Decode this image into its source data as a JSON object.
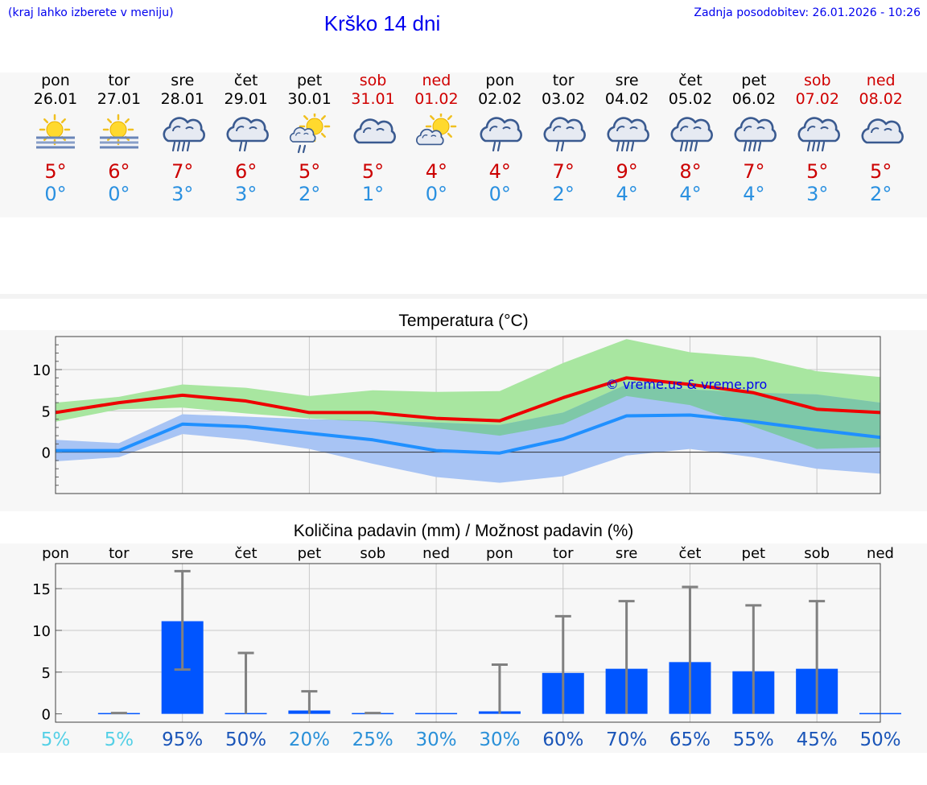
{
  "header": {
    "hint": "(kraj lahko izberete v meniju)",
    "title": "Krško 14 dni",
    "updated": "Zadnja posodobitev: 26.01.2026 - 10:26"
  },
  "forecast": [
    {
      "day": "pon",
      "date": "26.01",
      "weekend": false,
      "icon": "sun-fog-icon",
      "tmax": "5°",
      "tmin": "0°"
    },
    {
      "day": "tor",
      "date": "27.01",
      "weekend": false,
      "icon": "sun-fog-icon",
      "tmax": "6°",
      "tmin": "0°"
    },
    {
      "day": "sre",
      "date": "28.01",
      "weekend": false,
      "icon": "cloud-rain-icon",
      "tmax": "7°",
      "tmin": "3°"
    },
    {
      "day": "čet",
      "date": "29.01",
      "weekend": false,
      "icon": "cloud-light-rain-icon",
      "tmax": "6°",
      "tmin": "3°"
    },
    {
      "day": "pet",
      "date": "30.01",
      "weekend": false,
      "icon": "sun-cloud-rain-icon",
      "tmax": "5°",
      "tmin": "2°"
    },
    {
      "day": "sob",
      "date": "31.01",
      "weekend": true,
      "icon": "cloud-icon",
      "tmax": "5°",
      "tmin": "1°"
    },
    {
      "day": "ned",
      "date": "01.02",
      "weekend": true,
      "icon": "sun-cloud-icon",
      "tmax": "4°",
      "tmin": "0°"
    },
    {
      "day": "pon",
      "date": "02.02",
      "weekend": false,
      "icon": "cloud-light-rain-icon",
      "tmax": "4°",
      "tmin": "0°"
    },
    {
      "day": "tor",
      "date": "03.02",
      "weekend": false,
      "icon": "cloud-light-rain-icon",
      "tmax": "7°",
      "tmin": "2°"
    },
    {
      "day": "sre",
      "date": "04.02",
      "weekend": false,
      "icon": "cloud-rain-icon",
      "tmax": "9°",
      "tmin": "4°"
    },
    {
      "day": "čet",
      "date": "05.02",
      "weekend": false,
      "icon": "cloud-rain-icon",
      "tmax": "8°",
      "tmin": "4°"
    },
    {
      "day": "pet",
      "date": "06.02",
      "weekend": false,
      "icon": "cloud-rain-icon",
      "tmax": "7°",
      "tmin": "4°"
    },
    {
      "day": "sob",
      "date": "07.02",
      "weekend": true,
      "icon": "cloud-rain-icon",
      "tmax": "5°",
      "tmin": "3°"
    },
    {
      "day": "ned",
      "date": "08.02",
      "weekend": true,
      "icon": "cloud-icon",
      "tmax": "5°",
      "tmin": "2°"
    }
  ],
  "colors": {
    "tmax_line": "#ee0000",
    "tmin_line": "#2090ff",
    "tmax_band": "#a8e6a0",
    "tmin_band": "#a8c4f4",
    "overlap_band": "#7ec8a8",
    "precip_bar": "#0055ff",
    "whisker": "#808080",
    "prob_low": "#55d0e6",
    "prob_mid": "#2a90d8",
    "prob_high": "#1a55b8"
  },
  "chart_data": [
    {
      "type": "line",
      "title": "Temperatura (°C)",
      "x": [
        "26.01",
        "27.01",
        "28.01",
        "29.01",
        "30.01",
        "31.01",
        "01.02",
        "02.02",
        "03.02",
        "04.02",
        "05.02",
        "06.02",
        "07.02",
        "08.02"
      ],
      "ylim": [
        -5,
        14
      ],
      "yticks": [
        0,
        5,
        10
      ],
      "watermark": "© vreme.us & vreme.pro",
      "series": [
        {
          "name": "tmax",
          "values": [
            4.8,
            6.0,
            6.9,
            6.2,
            4.8,
            4.8,
            4.1,
            3.8,
            6.6,
            9.0,
            8.2,
            7.2,
            5.2,
            4.8
          ]
        },
        {
          "name": "tmax_low",
          "values": [
            3.7,
            5.2,
            5.4,
            4.7,
            4.1,
            3.7,
            2.9,
            2.0,
            3.4,
            6.8,
            5.7,
            3.1,
            0.4,
            0.6
          ]
        },
        {
          "name": "tmax_high",
          "values": [
            6.0,
            6.7,
            8.2,
            7.8,
            6.8,
            7.5,
            7.3,
            7.4,
            10.8,
            13.7,
            12.1,
            11.5,
            9.8,
            9.1
          ]
        },
        {
          "name": "tmin",
          "values": [
            0.2,
            0.2,
            3.4,
            3.1,
            2.3,
            1.5,
            0.2,
            -0.1,
            1.6,
            4.4,
            4.5,
            3.7,
            2.7,
            1.8
          ]
        },
        {
          "name": "tmin_low",
          "values": [
            -1.1,
            -0.6,
            2.2,
            1.5,
            0.4,
            -1.4,
            -3.0,
            -3.7,
            -2.9,
            -0.4,
            0.4,
            -0.6,
            -2.0,
            -2.6
          ]
        },
        {
          "name": "tmin_high",
          "values": [
            1.5,
            1.1,
            4.6,
            4.3,
            4.0,
            3.8,
            3.6,
            3.3,
            4.8,
            8.2,
            7.6,
            7.2,
            7.0,
            6.0
          ]
        }
      ]
    },
    {
      "type": "bar",
      "title": "Količina padavin (mm) / Možnost padavin (%)",
      "categories": [
        "pon",
        "tor",
        "sre",
        "čet",
        "pet",
        "sob",
        "ned",
        "pon",
        "tor",
        "sre",
        "čet",
        "pet",
        "sob",
        "ned"
      ],
      "ylim": [
        -1,
        18
      ],
      "yticks": [
        0,
        5,
        10,
        15
      ],
      "ytick_labels": [
        "0",
        "5",
        "10",
        "15"
      ],
      "series": [
        {
          "name": "precip_mm",
          "values": [
            0.0,
            0.1,
            11.1,
            0.1,
            0.4,
            0.0,
            0.0,
            0.3,
            4.9,
            5.4,
            6.2,
            5.1,
            5.4,
            0.0
          ]
        },
        {
          "name": "precip_max",
          "values": [
            0.0,
            0.1,
            17.1,
            7.3,
            2.7,
            0.1,
            0.0,
            5.9,
            11.7,
            13.5,
            15.2,
            13.0,
            13.5,
            0.0
          ]
        },
        {
          "name": "precip_min",
          "values": [
            0.0,
            0.0,
            5.3,
            0.0,
            0.0,
            0.0,
            0.0,
            0.0,
            0.0,
            0.0,
            0.0,
            0.0,
            0.0,
            0.0
          ]
        }
      ],
      "probability": [
        "5%",
        "5%",
        "95%",
        "50%",
        "20%",
        "25%",
        "30%",
        "30%",
        "60%",
        "70%",
        "65%",
        "55%",
        "45%",
        "50%"
      ]
    }
  ]
}
